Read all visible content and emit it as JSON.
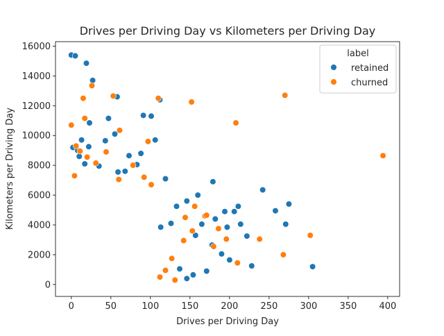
{
  "chart_data": {
    "type": "scatter",
    "title": "Drives per Driving Day vs Kilometers per Driving Day",
    "xlabel": "Drives per Driving Day",
    "ylabel": "Kilometers per Driving Day",
    "xlim": [
      -20,
      415
    ],
    "ylim": [
      -800,
      16300
    ],
    "xticks": [
      0,
      50,
      100,
      150,
      200,
      250,
      300,
      350,
      400
    ],
    "yticks": [
      0,
      2000,
      4000,
      6000,
      8000,
      10000,
      12000,
      14000,
      16000
    ],
    "grid": false,
    "legend": {
      "title": "label",
      "placement": "upper right"
    },
    "series": [
      {
        "name": "retained",
        "color": "#1f77b4",
        "points": [
          [
            0,
            15400
          ],
          [
            5,
            15350
          ],
          [
            19,
            14850
          ],
          [
            27,
            13700
          ],
          [
            58,
            12600
          ],
          [
            112,
            12400
          ],
          [
            91,
            11350
          ],
          [
            47,
            11150
          ],
          [
            101,
            11300
          ],
          [
            23,
            10850
          ],
          [
            55,
            10100
          ],
          [
            2,
            9200
          ],
          [
            13,
            9700
          ],
          [
            22,
            9250
          ],
          [
            43,
            9650
          ],
          [
            106,
            9700
          ],
          [
            88,
            8800
          ],
          [
            73,
            8650
          ],
          [
            83,
            8050
          ],
          [
            8,
            9000
          ],
          [
            10,
            8600
          ],
          [
            17,
            8100
          ],
          [
            35,
            7950
          ],
          [
            59,
            7550
          ],
          [
            68,
            7600
          ],
          [
            119,
            7100
          ],
          [
            179,
            6900
          ],
          [
            160,
            6000
          ],
          [
            242,
            6350
          ],
          [
            258,
            4950
          ],
          [
            275,
            5400
          ],
          [
            271,
            4050
          ],
          [
            228,
            1250
          ],
          [
            305,
            1200
          ],
          [
            182,
            4400
          ],
          [
            206,
            4900
          ],
          [
            211,
            5250
          ],
          [
            214,
            4050
          ],
          [
            194,
            4900
          ],
          [
            197,
            3850
          ],
          [
            222,
            3250
          ],
          [
            157,
            3300
          ],
          [
            165,
            4050
          ],
          [
            146,
            5600
          ],
          [
            133,
            5250
          ],
          [
            126,
            4100
          ],
          [
            113,
            3850
          ],
          [
            178,
            2650
          ],
          [
            190,
            2050
          ],
          [
            200,
            1650
          ],
          [
            171,
            900
          ],
          [
            154,
            650
          ],
          [
            146,
            400
          ],
          [
            137,
            1050
          ]
        ]
      },
      {
        "name": "churned",
        "color": "#ff7f0e",
        "points": [
          [
            0,
            10700
          ],
          [
            17,
            11150
          ],
          [
            15,
            12500
          ],
          [
            26,
            13350
          ],
          [
            53,
            12650
          ],
          [
            110,
            12500
          ],
          [
            152,
            12250
          ],
          [
            270,
            12700
          ],
          [
            208,
            10850
          ],
          [
            394,
            8650
          ],
          [
            302,
            3300
          ],
          [
            268,
            2000
          ],
          [
            238,
            3050
          ],
          [
            210,
            1450
          ],
          [
            196,
            3050
          ],
          [
            186,
            3750
          ],
          [
            169,
            4600
          ],
          [
            153,
            3600
          ],
          [
            142,
            2950
          ],
          [
            127,
            1750
          ],
          [
            119,
            950
          ],
          [
            112,
            500
          ],
          [
            131,
            300
          ],
          [
            180,
            2550
          ],
          [
            61,
            10350
          ],
          [
            97,
            9600
          ],
          [
            4,
            7300
          ],
          [
            6,
            9300
          ],
          [
            11,
            8950
          ],
          [
            20,
            8550
          ],
          [
            31,
            8150
          ],
          [
            44,
            8900
          ],
          [
            60,
            7050
          ],
          [
            78,
            8000
          ],
          [
            92,
            7200
          ],
          [
            101,
            6700
          ],
          [
            144,
            4500
          ],
          [
            156,
            5250
          ],
          [
            171,
            4650
          ]
        ]
      }
    ]
  }
}
